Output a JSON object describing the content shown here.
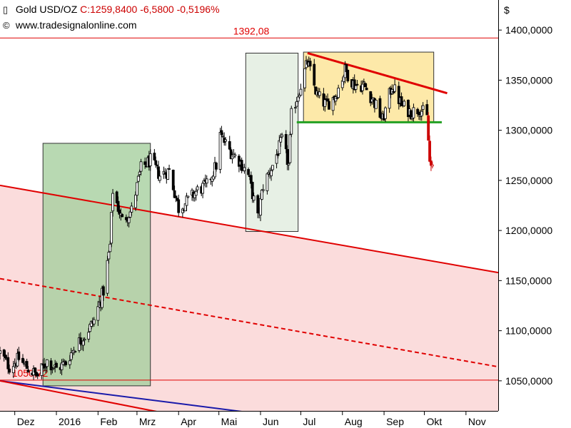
{
  "header": {
    "symbol": "Gold USD/OZ",
    "close_text": "C:1259,8400",
    "change": "-6,5800",
    "change_pct": "-0,5196%",
    "source": "www.tradesignalonline.com",
    "instrument_icon": "candlestick-icon",
    "copyright_icon": "copyright-icon"
  },
  "colors": {
    "candle_up": "#ffffff",
    "candle_down": "#000000",
    "candle_down_red": "#cc0000",
    "resistance_line": "#e00000",
    "support_line": "#22a022",
    "channel_line": "#e00000",
    "channel_fill": "#fbdcdc",
    "lower_channel_line": "#1a1aaa",
    "box_green": "#a6cf9f",
    "box_light": "#e4eee2",
    "box_yellow": "#fde7a0"
  },
  "chart_data": {
    "type": "candlestick",
    "currency_label": "$",
    "y_ticks": [
      "1400,0000",
      "1350,0000",
      "1300,0000",
      "1250,0000",
      "1200,0000",
      "1150,0000",
      "1100,0000",
      "1050,0000"
    ],
    "y_tick_values": [
      1400,
      1350,
      1300,
      1250,
      1200,
      1150,
      1100,
      1050
    ],
    "ylim": [
      1020,
      1430
    ],
    "x_labels": [
      "Dez",
      "2016",
      "Feb",
      "Mrz",
      "Apr",
      "Mai",
      "Jun",
      "Jul",
      "Aug",
      "Sep",
      "Okt",
      "Nov"
    ],
    "x_label_dates": [
      "2015-12-01",
      "2016-01-01",
      "2016-02-01",
      "2016-03-01",
      "2016-04-01",
      "2016-05-01",
      "2016-06-01",
      "2016-07-01",
      "2016-08-01",
      "2016-09-01",
      "2016-10-01",
      "2016-11-01"
    ],
    "xlim": [
      "2015-11-20",
      "2016-11-25"
    ],
    "horizontal_levels": [
      {
        "label": "1392,08",
        "value": 1392.08
      },
      {
        "label": "1050,72",
        "value": 1050.72
      }
    ],
    "price_path": [
      [
        "2015-11-20",
        1078
      ],
      [
        "2015-11-27",
        1064
      ],
      [
        "2015-12-04",
        1072
      ],
      [
        "2015-12-11",
        1062
      ],
      [
        "2015-12-18",
        1055
      ],
      [
        "2015-12-25",
        1070
      ],
      [
        "2016-01-01",
        1062
      ],
      [
        "2016-01-08",
        1068
      ],
      [
        "2016-01-15",
        1085
      ],
      [
        "2016-01-22",
        1095
      ],
      [
        "2016-01-29",
        1110
      ],
      [
        "2016-02-05",
        1140
      ],
      [
        "2016-02-10",
        1185
      ],
      [
        "2016-02-12",
        1240
      ],
      [
        "2016-02-19",
        1210
      ],
      [
        "2016-02-26",
        1220
      ],
      [
        "2016-03-04",
        1262
      ],
      [
        "2016-03-11",
        1270
      ],
      [
        "2016-03-18",
        1255
      ],
      [
        "2016-03-25",
        1260
      ],
      [
        "2016-04-01",
        1222
      ],
      [
        "2016-04-08",
        1230
      ],
      [
        "2016-04-15",
        1240
      ],
      [
        "2016-04-22",
        1245
      ],
      [
        "2016-04-29",
        1265
      ],
      [
        "2016-05-02",
        1295
      ],
      [
        "2016-05-09",
        1280
      ],
      [
        "2016-05-16",
        1270
      ],
      [
        "2016-05-23",
        1255
      ],
      [
        "2016-05-30",
        1212
      ],
      [
        "2016-06-03",
        1245
      ],
      [
        "2016-06-10",
        1265
      ],
      [
        "2016-06-17",
        1290
      ],
      [
        "2016-06-22",
        1265
      ],
      [
        "2016-06-24",
        1315
      ],
      [
        "2016-07-01",
        1345
      ],
      [
        "2016-07-06",
        1368
      ],
      [
        "2016-07-13",
        1335
      ],
      [
        "2016-07-20",
        1325
      ],
      [
        "2016-07-27",
        1335
      ],
      [
        "2016-08-03",
        1360
      ],
      [
        "2016-08-10",
        1345
      ],
      [
        "2016-08-17",
        1345
      ],
      [
        "2016-08-24",
        1330
      ],
      [
        "2016-08-31",
        1310
      ],
      [
        "2016-09-07",
        1345
      ],
      [
        "2016-09-14",
        1325
      ],
      [
        "2016-09-21",
        1318
      ],
      [
        "2016-09-28",
        1322
      ],
      [
        "2016-10-03",
        1312
      ],
      [
        "2016-10-05",
        1268
      ],
      [
        "2016-10-07",
        1260
      ]
    ],
    "drawings": {
      "red_channel_line_1": [
        [
          "2015-11-20",
          1245
        ],
        [
          "2016-11-25",
          1158
        ]
      ],
      "red_channel_line_2_dashed": [
        [
          "2015-11-20",
          1152
        ],
        [
          "2016-11-25",
          1064
        ]
      ],
      "blue_line": [
        [
          "2015-11-20",
          1050
        ],
        [
          "2016-06-30",
          1012
        ]
      ],
      "red_lower_line": [
        [
          "2015-11-20",
          1050
        ],
        [
          "2016-04-01",
          1015
        ]
      ],
      "resistance_line": [
        [
          "2016-07-06",
          1377
        ],
        [
          "2016-10-18",
          1337
        ]
      ],
      "support_line": [
        [
          "2016-06-28",
          1308
        ],
        [
          "2016-10-14",
          1308
        ]
      ],
      "green_box": {
        "from": "2015-12-22",
        "to": "2016-03-11",
        "low": 1045,
        "high": 1287
      },
      "light_box": {
        "from": "2016-05-21",
        "to": "2016-06-29",
        "low": 1199,
        "high": 1377
      },
      "yellow_box": {
        "from": "2016-07-03",
        "to": "2016-10-08",
        "low": 1308,
        "high": 1378
      }
    }
  }
}
